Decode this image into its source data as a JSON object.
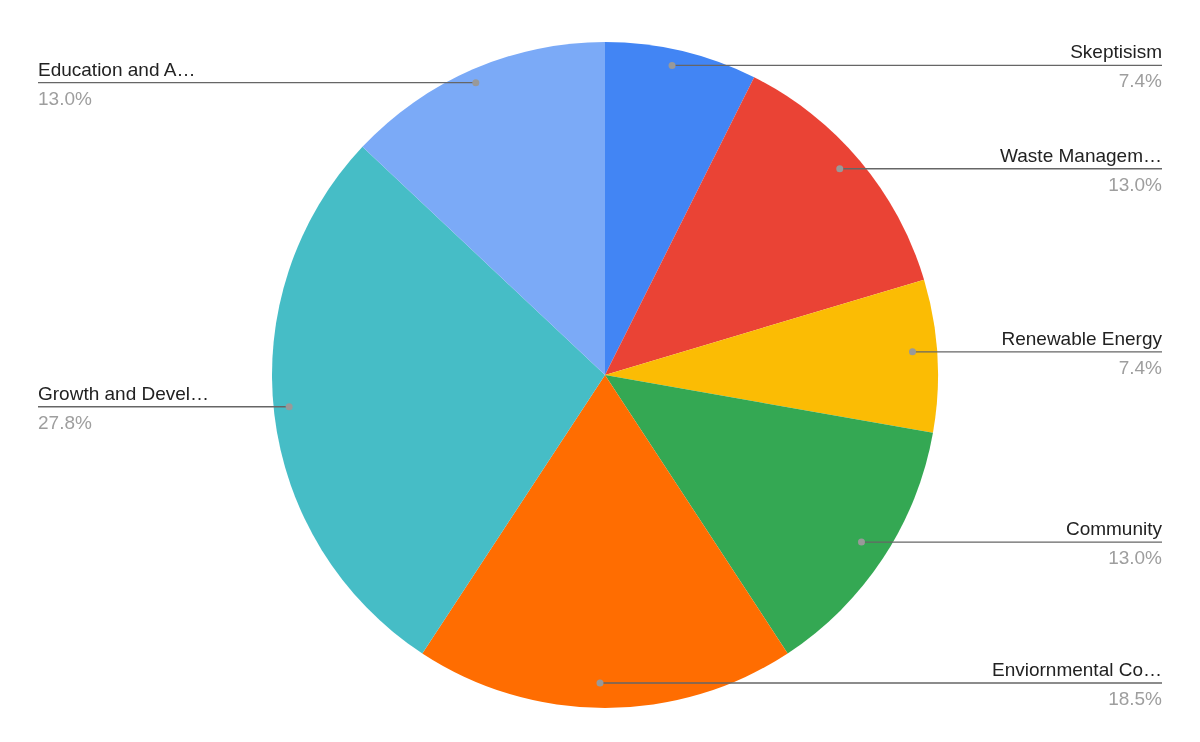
{
  "chart_data": {
    "type": "pie",
    "categories": [
      "Skeptisism",
      "Waste Managem…",
      "Renewable Energy",
      "Community",
      "Enviornmental Co…",
      "Growth and Devel…",
      "Education and A…"
    ],
    "values": [
      7.4,
      13.0,
      7.4,
      13.0,
      18.5,
      27.8,
      13.0
    ],
    "value_labels": [
      "7.4%",
      "13.0%",
      "7.4%",
      "13.0%",
      "18.5%",
      "27.8%",
      "13.0%"
    ],
    "colors": [
      "#4285f4",
      "#ea4335",
      "#fbbc04",
      "#34a853",
      "#ff6d01",
      "#46bdc6",
      "#7baaf7"
    ]
  }
}
